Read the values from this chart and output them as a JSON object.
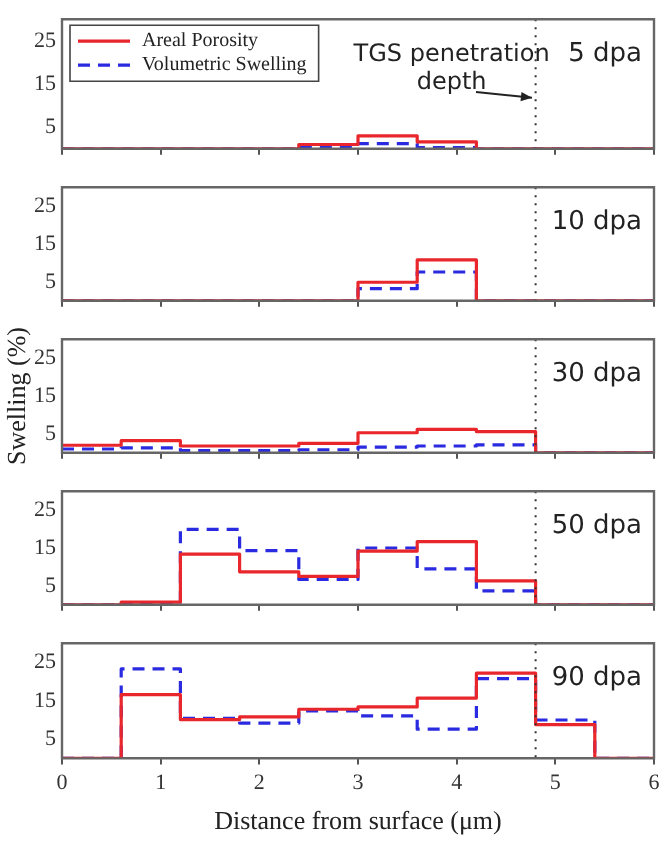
{
  "chart_data": [
    {
      "type": "histogram",
      "title": "5 dpa",
      "bins": [
        0,
        0.6,
        1.2,
        1.8,
        2.4,
        3.0,
        3.6,
        4.2,
        4.8,
        5.4,
        6.0
      ],
      "series": [
        {
          "name": "Areal Porosity",
          "color": "#e8262b",
          "values": [
            0,
            0,
            0,
            0,
            1,
            3,
            1.6,
            0,
            0,
            0
          ]
        },
        {
          "name": "Volumetric Swelling",
          "color": "#2a2ae0",
          "line_style": "dashed",
          "values": [
            0,
            0,
            0,
            0,
            0.5,
            1.2,
            0.3,
            0,
            0,
            0
          ]
        }
      ],
      "xlim": [
        0,
        6
      ],
      "ylim": [
        0,
        30
      ],
      "xticks": [
        0,
        1,
        2,
        3,
        4,
        5,
        6
      ],
      "yticks": [
        5,
        15,
        25
      ],
      "tick_labels": "y",
      "legend": "top left",
      "ref_lines": [
        {
          "axis": "x",
          "value": 4.8,
          "line_style": "dotted"
        }
      ],
      "annotations": [
        {
          "text": "TGS penetration depth",
          "x": 4.8,
          "y": 12
        }
      ]
    },
    {
      "type": "histogram",
      "title": "10 dpa",
      "bins": [
        0,
        0.6,
        1.2,
        1.8,
        2.4,
        3.0,
        3.6,
        4.2,
        4.8,
        5.4,
        6.0
      ],
      "series": [
        {
          "color": "#e8262b",
          "values": [
            0,
            0,
            0,
            0,
            0,
            4.9,
            10.8,
            0,
            0,
            0
          ]
        },
        {
          "color": "#2a2ae0",
          "line_style": "dashed",
          "values": [
            0,
            0,
            0,
            0,
            0,
            3.2,
            7.6,
            0,
            0,
            0
          ]
        }
      ],
      "xlim": [
        0,
        6
      ],
      "ylim": [
        0,
        30
      ],
      "xticks": [
        0,
        1,
        2,
        3,
        4,
        5,
        6
      ],
      "yticks": [
        5,
        15,
        25
      ],
      "tick_labels": "y",
      "ref_lines": [
        {
          "axis": "x",
          "value": 4.8,
          "line_style": "dotted"
        }
      ]
    },
    {
      "type": "histogram",
      "title": "30 dpa",
      "ylabel": "Swelling (%)",
      "bins": [
        0,
        0.6,
        1.2,
        1.8,
        2.4,
        3.0,
        3.6,
        4.2,
        4.8,
        5.4,
        6.0
      ],
      "series": [
        {
          "color": "#e8262b",
          "values": [
            2,
            3.2,
            1.8,
            1.8,
            2.5,
            5.3,
            6.2,
            5.6,
            0,
            0
          ]
        },
        {
          "color": "#2a2ae0",
          "line_style": "dashed",
          "values": [
            1,
            1.3,
            0.6,
            0.6,
            0.8,
            1.5,
            1.8,
            2.1,
            0,
            0
          ]
        }
      ],
      "xlim": [
        0,
        6
      ],
      "ylim": [
        0,
        30
      ],
      "xticks": [
        0,
        1,
        2,
        3,
        4,
        5,
        6
      ],
      "yticks": [
        5,
        15,
        25
      ],
      "tick_labels": "y",
      "ref_lines": [
        {
          "axis": "x",
          "value": 4.8,
          "line_style": "dotted"
        }
      ]
    },
    {
      "type": "histogram",
      "title": "50 dpa",
      "bins": [
        0,
        0.6,
        1.2,
        1.8,
        2.4,
        3.0,
        3.6,
        4.2,
        4.8,
        5.4,
        6.0
      ],
      "series": [
        {
          "color": "#e8262b",
          "values": [
            0,
            0.7,
            13.4,
            8.7,
            7.5,
            14.2,
            16.7,
            6.3,
            0,
            0
          ]
        },
        {
          "color": "#2a2ae0",
          "line_style": "dashed",
          "values": [
            0,
            0.4,
            19.9,
            14.3,
            6.7,
            15,
            9.5,
            3.7,
            0,
            0
          ]
        }
      ],
      "xlim": [
        0,
        6
      ],
      "ylim": [
        0,
        30
      ],
      "xticks": [
        0,
        1,
        2,
        3,
        4,
        5,
        6
      ],
      "yticks": [
        5,
        15,
        25
      ],
      "tick_labels": "y",
      "ref_lines": [
        {
          "axis": "x",
          "value": 4.8,
          "line_style": "dotted"
        }
      ]
    },
    {
      "type": "histogram",
      "title": "90 dpa",
      "xlabel": "Distance from surface (μm)",
      "bins": [
        0,
        0.6,
        1.2,
        1.8,
        2.4,
        3.0,
        3.6,
        4.2,
        4.8,
        5.4,
        6.0
      ],
      "series": [
        {
          "color": "#e8262b",
          "values": [
            0,
            16.6,
            10.1,
            10.8,
            12.8,
            13.4,
            15.7,
            22.2,
            8.8,
            0
          ]
        },
        {
          "color": "#2a2ae0",
          "line_style": "dashed",
          "values": [
            0,
            23.3,
            10.4,
            9.2,
            12.4,
            11.1,
            7.6,
            20.8,
            10,
            0
          ]
        }
      ],
      "xlim": [
        0,
        6
      ],
      "ylim": [
        0,
        30
      ],
      "xticks": [
        0,
        1,
        2,
        3,
        4,
        5,
        6
      ],
      "yticks": [
        5,
        15,
        25
      ],
      "ref_lines": [
        {
          "axis": "x",
          "value": 4.8,
          "line_style": "dotted"
        }
      ]
    }
  ]
}
